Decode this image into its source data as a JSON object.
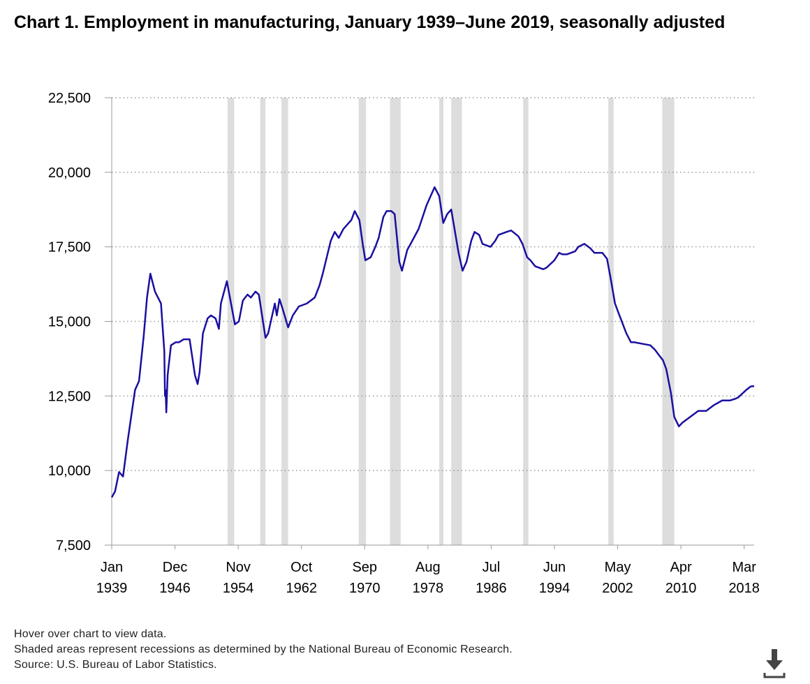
{
  "chart_data": {
    "type": "line",
    "title": "Chart 1. Employment in manufacturing, January 1939–June 2019, seasonally adjusted",
    "xlim": [
      "1939-01",
      "2019-06"
    ],
    "xticks": [
      {
        "value": "1939-01",
        "label": "Jan 1939"
      },
      {
        "value": "1946-12",
        "label": "Dec 1946"
      },
      {
        "value": "1954-11",
        "label": "Nov 1954"
      },
      {
        "value": "1962-10",
        "label": "Oct 1962"
      },
      {
        "value": "1970-09",
        "label": "Sep 1970"
      },
      {
        "value": "1978-08",
        "label": "Aug 1978"
      },
      {
        "value": "1986-07",
        "label": "Jul 1986"
      },
      {
        "value": "1994-06",
        "label": "Jun 1994"
      },
      {
        "value": "2002-05",
        "label": "May 2002"
      },
      {
        "value": "2010-04",
        "label": "Apr 2010"
      },
      {
        "value": "2018-03",
        "label": "Mar 2018"
      }
    ],
    "ylim": [
      7500,
      22500
    ],
    "yticks": [
      {
        "value": 7500,
        "label": "7,500"
      },
      {
        "value": 10000,
        "label": "10,000"
      },
      {
        "value": 12500,
        "label": "12,500"
      },
      {
        "value": 15000,
        "label": "15,000"
      },
      {
        "value": 17500,
        "label": "17,500"
      },
      {
        "value": 20000,
        "label": "20,000"
      },
      {
        "value": 22500,
        "label": "22,500"
      }
    ],
    "grid": true,
    "recession_color": "#dddddd",
    "recessions": [
      [
        "1953-07",
        "1954-05"
      ],
      [
        "1957-08",
        "1958-04"
      ],
      [
        "1960-04",
        "1961-02"
      ],
      [
        "1969-12",
        "1970-11"
      ],
      [
        "1973-11",
        "1975-03"
      ],
      [
        "1980-01",
        "1980-07"
      ],
      [
        "1981-07",
        "1982-11"
      ],
      [
        "1990-07",
        "1991-03"
      ],
      [
        "2001-03",
        "2001-11"
      ],
      [
        "2007-12",
        "2009-06"
      ]
    ],
    "series": [
      {
        "name": "Employment in manufacturing",
        "color": "#1a0fa0",
        "x": [
          "1939-01",
          "1939-06",
          "1939-12",
          "1940-06",
          "1941-01",
          "1941-12",
          "1942-06",
          "1943-01",
          "1943-06",
          "1943-11",
          "1944-06",
          "1945-03",
          "1945-08",
          "1945-09",
          "1945-10",
          "1945-11",
          "1946-01",
          "1946-06",
          "1947-01",
          "1947-06",
          "1948-01",
          "1948-10",
          "1949-06",
          "1949-10",
          "1950-01",
          "1950-06",
          "1951-01",
          "1951-06",
          "1952-01",
          "1952-06",
          "1952-09",
          "1953-06",
          "1954-06",
          "1954-12",
          "1955-06",
          "1956-01",
          "1956-06",
          "1957-01",
          "1957-06",
          "1958-04",
          "1958-08",
          "1959-06",
          "1959-09",
          "1960-01",
          "1960-06",
          "1961-02",
          "1961-09",
          "1962-06",
          "1963-06",
          "1964-06",
          "1965-01",
          "1965-06",
          "1966-06",
          "1966-12",
          "1967-06",
          "1968-01",
          "1969-01",
          "1969-06",
          "1970-01",
          "1970-06",
          "1970-10",
          "1971-06",
          "1972-01",
          "1972-06",
          "1973-01",
          "1973-06",
          "1974-01",
          "1974-06",
          "1975-01",
          "1975-05",
          "1976-01",
          "1976-06",
          "1977-06",
          "1978-06",
          "1979-06",
          "1980-01",
          "1980-07",
          "1981-01",
          "1981-07",
          "1982-06",
          "1982-12",
          "1983-06",
          "1984-01",
          "1984-06",
          "1985-01",
          "1985-06",
          "1986-06",
          "1987-01",
          "1987-06",
          "1988-06",
          "1989-01",
          "1989-12",
          "1990-06",
          "1991-01",
          "1991-06",
          "1992-01",
          "1993-01",
          "1993-06",
          "1994-06",
          "1995-01",
          "1995-06",
          "1996-01",
          "1997-01",
          "1997-06",
          "1998-03",
          "1998-12",
          "1999-06",
          "2000-06",
          "2001-01",
          "2001-06",
          "2002-01",
          "2002-06",
          "2003-06",
          "2004-01",
          "2004-06",
          "2005-06",
          "2006-06",
          "2007-01",
          "2007-06",
          "2008-01",
          "2008-06",
          "2009-01",
          "2009-06",
          "2010-01",
          "2010-06",
          "2011-06",
          "2012-06",
          "2013-06",
          "2014-06",
          "2015-06",
          "2016-06",
          "2017-01",
          "2017-06",
          "2018-06",
          "2019-01",
          "2019-06"
        ],
        "values": [
          9100,
          9300,
          9950,
          9800,
          11000,
          12700,
          13000,
          14500,
          15800,
          16600,
          16000,
          15600,
          14000,
          12500,
          12700,
          11950,
          13200,
          14200,
          14300,
          14300,
          14400,
          14400,
          13200,
          12900,
          13300,
          14600,
          15100,
          15200,
          15100,
          14750,
          15600,
          16350,
          14900,
          15000,
          15700,
          15900,
          15800,
          16000,
          15900,
          14450,
          14600,
          15600,
          15200,
          15750,
          15400,
          14800,
          15200,
          15500,
          15600,
          15800,
          16200,
          16600,
          17700,
          18000,
          17800,
          18100,
          18400,
          18700,
          18400,
          17600,
          17050,
          17150,
          17500,
          17800,
          18500,
          18700,
          18700,
          18600,
          17000,
          16700,
          17400,
          17600,
          18100,
          18900,
          19500,
          19200,
          18300,
          18600,
          18750,
          17300,
          16700,
          17000,
          17700,
          18000,
          17900,
          17600,
          17500,
          17700,
          17900,
          18000,
          18050,
          17850,
          17600,
          17150,
          17050,
          16850,
          16750,
          16800,
          17050,
          17300,
          17250,
          17250,
          17350,
          17500,
          17600,
          17450,
          17300,
          17300,
          17100,
          16500,
          15600,
          15300,
          14600,
          14300,
          14300,
          14250,
          14200,
          14050,
          13900,
          13700,
          13400,
          12600,
          11800,
          11480,
          11600,
          11800,
          12000,
          12000,
          12200,
          12350,
          12350,
          12400,
          12450,
          12700,
          12820,
          12830
        ]
      }
    ]
  },
  "notes": [
    "Hover over chart to view data.",
    "Shaded areas represent recessions as determined by the National Bureau of Economic Research.",
    "Source: U.S. Bureau of Labor Statistics."
  ]
}
